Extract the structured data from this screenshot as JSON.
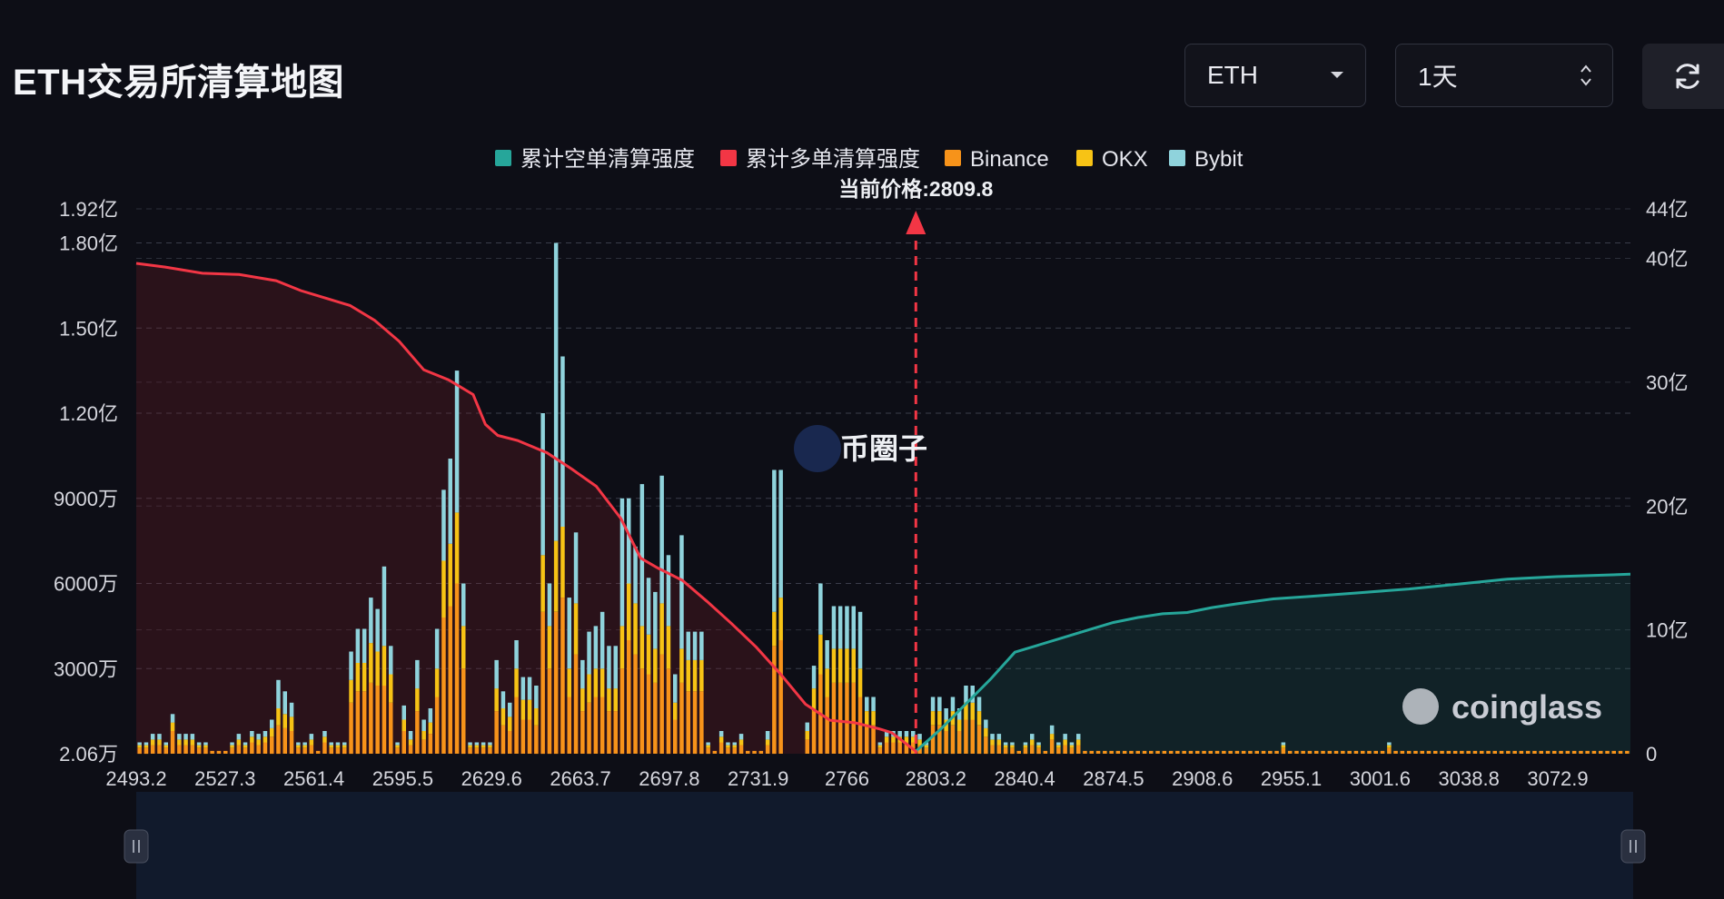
{
  "header": {
    "title": "ETH交易所清算地图",
    "coin_select": "ETH",
    "range_select": "1天"
  },
  "legend": [
    {
      "label": "累计空单清算强度",
      "color": "#26a69a"
    },
    {
      "label": "累计多单清算强度",
      "color": "#f23645"
    },
    {
      "label": "Binance",
      "color": "#f7931a"
    },
    {
      "label": "OKX",
      "color": "#f7c315"
    },
    {
      "label": "Bybit",
      "color": "#8fd3dc"
    }
  ],
  "current_price_label": "当前价格:2809.8",
  "watermarks": {
    "center": "币圈子",
    "brand": "coinglass"
  },
  "icons": {
    "dropdown": "caret-down-icon",
    "range": "updown-chevron-icon",
    "refresh": "refresh-icon",
    "handle": "pause-handle-icon"
  },
  "chart_data": {
    "type": "bar",
    "current_price": 2809.8,
    "x_tick_labels": [
      "2493.2",
      "2527.3",
      "2561.4",
      "2595.5",
      "2629.6",
      "2663.7",
      "2697.8",
      "2731.9",
      "2766",
      "2803.2",
      "2840.4",
      "2874.5",
      "2908.6",
      "2955.1",
      "3001.6",
      "3038.8",
      "3072.9"
    ],
    "y_left_tick_labels": [
      "1.92亿",
      "1.80亿",
      "1.50亿",
      "1.20亿",
      "9000万",
      "6000万",
      "3000万",
      "2.06万"
    ],
    "y_left_tick_values": [
      192000000,
      180000000,
      150000000,
      120000000,
      90000000,
      60000000,
      30000000,
      20600
    ],
    "y_right_tick_labels": [
      "44亿",
      "40亿",
      "30亿",
      "20亿",
      "10亿",
      "0"
    ],
    "y_right_tick_values": [
      4400000000,
      4000000000,
      3000000000,
      2000000000,
      1000000000,
      0
    ],
    "ylim_left": [
      0,
      192000000
    ],
    "ylim_right": [
      0,
      4400000000
    ],
    "bar_series": [
      {
        "name": "Binance",
        "color": "#f7931a",
        "values": [
          2,
          2,
          3,
          3,
          2,
          8,
          3,
          3,
          3,
          2,
          2,
          1,
          1,
          1,
          2,
          3,
          2,
          4,
          3,
          4,
          6,
          10,
          9,
          8,
          2,
          2,
          3,
          1,
          4,
          2,
          2,
          2,
          18,
          22,
          22,
          25,
          24,
          24,
          18,
          2,
          8,
          3,
          15,
          5,
          7,
          20,
          48,
          52,
          60,
          30,
          2,
          2,
          2,
          2,
          15,
          10,
          8,
          20,
          12,
          12,
          10,
          50,
          30,
          50,
          55,
          20,
          35,
          15,
          18,
          20,
          20,
          15,
          15,
          30,
          40,
          35,
          30,
          28,
          25,
          35,
          30,
          12,
          25,
          22,
          22,
          22,
          2,
          1,
          4,
          2,
          2,
          3,
          1,
          1,
          1,
          3,
          38,
          40,
          0,
          0,
          0,
          5,
          15,
          28,
          20,
          25,
          25,
          25,
          25,
          20,
          10,
          10,
          2,
          4,
          4,
          4,
          4,
          4,
          3,
          2,
          10,
          10,
          8,
          10,
          8,
          12,
          12,
          10,
          6,
          3,
          3,
          2,
          2,
          1,
          2,
          3,
          2,
          1,
          5,
          2,
          3,
          2,
          3,
          1,
          1,
          1,
          1,
          1,
          1,
          1,
          1,
          1,
          1,
          1,
          1,
          1,
          1,
          1,
          1,
          1,
          1,
          1,
          1,
          1,
          1,
          1,
          1,
          1,
          1,
          1,
          1,
          1,
          1,
          2,
          1,
          1,
          1,
          1,
          1,
          1,
          1,
          1,
          1,
          1,
          1,
          1,
          1,
          1,
          1,
          2,
          1,
          1,
          1,
          1,
          1,
          1,
          1,
          1,
          1,
          1,
          1,
          1,
          1,
          1,
          1,
          1,
          1,
          1,
          1,
          1,
          1,
          1,
          1,
          1,
          1,
          1,
          1,
          1,
          1,
          1,
          1,
          1,
          1,
          1,
          1,
          1
        ]
      },
      {
        "name": "OKX",
        "color": "#f7c315",
        "values": [
          1,
          1,
          2,
          2,
          1,
          3,
          2,
          2,
          2,
          1,
          1,
          0,
          0,
          0,
          1,
          2,
          1,
          2,
          2,
          2,
          3,
          6,
          5,
          5,
          1,
          1,
          2,
          0,
          2,
          1,
          1,
          1,
          8,
          10,
          10,
          14,
          12,
          14,
          10,
          1,
          4,
          2,
          8,
          3,
          4,
          10,
          20,
          22,
          25,
          15,
          1,
          1,
          1,
          1,
          8,
          6,
          5,
          10,
          7,
          7,
          6,
          20,
          15,
          25,
          25,
          10,
          18,
          8,
          10,
          10,
          10,
          8,
          8,
          15,
          20,
          18,
          15,
          14,
          12,
          18,
          15,
          6,
          12,
          11,
          11,
          11,
          1,
          0,
          2,
          1,
          1,
          2,
          0,
          0,
          0,
          2,
          12,
          15,
          0,
          0,
          0,
          3,
          8,
          14,
          10,
          12,
          12,
          12,
          12,
          10,
          5,
          5,
          1,
          2,
          2,
          2,
          2,
          2,
          2,
          1,
          5,
          5,
          4,
          5,
          4,
          6,
          6,
          5,
          3,
          2,
          2,
          1,
          1,
          0,
          1,
          2,
          1,
          0,
          2,
          1,
          2,
          1,
          2,
          0,
          0,
          0,
          0,
          0,
          0,
          0,
          0,
          0,
          0,
          0,
          0,
          0,
          0,
          0,
          0,
          0,
          0,
          0,
          0,
          0,
          0,
          0,
          0,
          0,
          0,
          0,
          0,
          0,
          0,
          1,
          0,
          0,
          0,
          0,
          0,
          0,
          0,
          0,
          0,
          0,
          0,
          0,
          0,
          0,
          0,
          1,
          0,
          0,
          0,
          0,
          0,
          0,
          0,
          0,
          0,
          0,
          0,
          0,
          0,
          0,
          0,
          0,
          0,
          0,
          0,
          0,
          0,
          0,
          0,
          0,
          0,
          0,
          0,
          0,
          0,
          0,
          0,
          0,
          0,
          0,
          0,
          0
        ]
      },
      {
        "name": "Bybit",
        "color": "#8fd3dc",
        "values": [
          1,
          1,
          2,
          2,
          1,
          3,
          2,
          2,
          2,
          1,
          1,
          0,
          0,
          0,
          1,
          2,
          1,
          2,
          2,
          2,
          3,
          10,
          8,
          5,
          1,
          1,
          2,
          0,
          2,
          1,
          1,
          1,
          10,
          12,
          12,
          16,
          15,
          28,
          10,
          1,
          5,
          3,
          10,
          4,
          5,
          14,
          25,
          30,
          50,
          15,
          1,
          1,
          1,
          1,
          10,
          6,
          5,
          10,
          8,
          8,
          8,
          50,
          15,
          105,
          60,
          25,
          25,
          10,
          15,
          15,
          20,
          15,
          15,
          45,
          30,
          20,
          50,
          20,
          20,
          45,
          25,
          10,
          40,
          10,
          10,
          10,
          1,
          0,
          2,
          1,
          1,
          2,
          0,
          0,
          0,
          3,
          50,
          45,
          0,
          0,
          0,
          3,
          8,
          18,
          10,
          15,
          15,
          15,
          15,
          20,
          5,
          5,
          1,
          2,
          2,
          2,
          2,
          2,
          2,
          1,
          5,
          5,
          4,
          5,
          4,
          6,
          6,
          5,
          3,
          2,
          2,
          1,
          1,
          0,
          1,
          2,
          1,
          0,
          3,
          1,
          2,
          1,
          2,
          0,
          0,
          0,
          0,
          0,
          0,
          0,
          0,
          0,
          0,
          0,
          0,
          0,
          0,
          0,
          0,
          0,
          0,
          0,
          0,
          0,
          0,
          0,
          0,
          0,
          0,
          0,
          0,
          0,
          0,
          1,
          0,
          0,
          0,
          0,
          0,
          0,
          0,
          0,
          0,
          0,
          0,
          0,
          0,
          0,
          0,
          1,
          0,
          0,
          0,
          0,
          0,
          0,
          0,
          0,
          0,
          0,
          0,
          0,
          0,
          0,
          0,
          0,
          0,
          0,
          0,
          0,
          0,
          0,
          0,
          0,
          0,
          0,
          0,
          0,
          0,
          0,
          0,
          0,
          0,
          0,
          0,
          0
        ]
      }
    ],
    "bar_unit": "百万",
    "bar_x_range": [
      2493.2,
      3100
    ],
    "long_cumulative": {
      "name": "累计多单清算强度",
      "color": "#f23645",
      "x": [
        2493.2,
        2505,
        2520,
        2535,
        2550,
        2560,
        2570,
        2580,
        2590,
        2600,
        2610,
        2620,
        2630,
        2635,
        2640,
        2648,
        2660,
        2670,
        2680,
        2690,
        2698,
        2705,
        2715,
        2725,
        2735,
        2745,
        2755,
        2765,
        2775,
        2785,
        2795,
        2800,
        2809.8
      ],
      "y": [
        3960,
        3930,
        3880,
        3870,
        3820,
        3740,
        3680,
        3620,
        3500,
        3330,
        3100,
        3020,
        2900,
        2660,
        2570,
        2530,
        2430,
        2300,
        2160,
        1900,
        1580,
        1500,
        1400,
        1230,
        1050,
        860,
        640,
        400,
        270,
        250,
        200,
        170,
        20
      ]
    },
    "short_cumulative": {
      "name": "累计空单清算强度",
      "color": "#26a69a",
      "x": [
        2809.8,
        2820,
        2830,
        2840,
        2850,
        2860,
        2870,
        2880,
        2890,
        2900,
        2910,
        2920,
        2930,
        2940,
        2955,
        2970,
        2990,
        3010,
        3030,
        3050,
        3070,
        3100
      ],
      "y": [
        20,
        200,
        400,
        600,
        820,
        880,
        940,
        1000,
        1060,
        1100,
        1130,
        1140,
        1180,
        1210,
        1250,
        1270,
        1300,
        1330,
        1370,
        1410,
        1430,
        1450
      ]
    },
    "right_axis_unit": "百万"
  }
}
